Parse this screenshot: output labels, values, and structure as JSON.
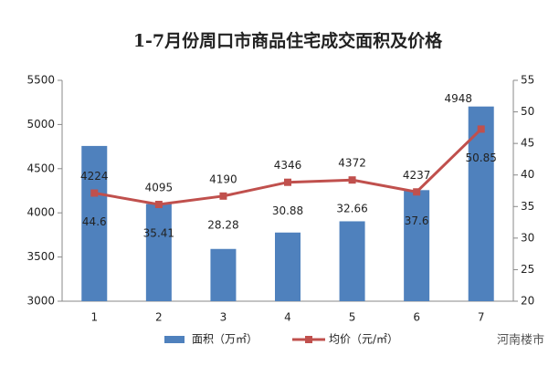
{
  "chart_data": {
    "type": "bar",
    "title": "1-7月份周口市商品住宅成交面积及价格",
    "categories": [
      "1",
      "2",
      "3",
      "4",
      "5",
      "6",
      "7"
    ],
    "series": [
      {
        "name": "面积（万㎡）",
        "type": "bar",
        "axis": "y2",
        "color": "#4f81bd",
        "values": [
          44.6,
          35.41,
          28.28,
          30.88,
          32.66,
          37.6,
          50.85
        ]
      },
      {
        "name": "均价（元/㎡）",
        "type": "line",
        "color": "#c0504d",
        "values": [
          4224,
          4095,
          4190,
          4346,
          4372,
          4237,
          4948
        ]
      }
    ],
    "ylim": [
      3000,
      5500
    ],
    "yticks": [
      3000,
      3500,
      4000,
      4500,
      5000,
      5500
    ],
    "y2lim": [
      20,
      55
    ],
    "y2ticks": [
      20,
      25,
      30,
      35,
      40,
      45,
      50,
      55
    ],
    "source": "河南楼市"
  }
}
